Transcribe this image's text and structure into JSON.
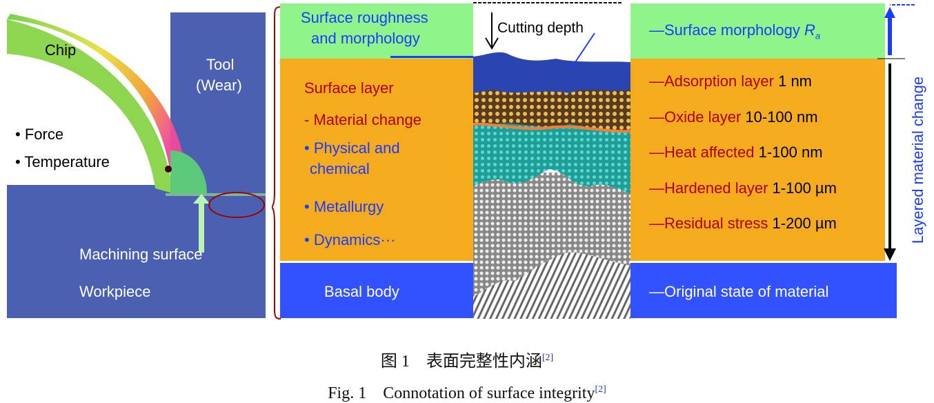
{
  "left_panel": {
    "chip": "Chip",
    "tool": "Tool",
    "tool_wear": "(Wear)",
    "bullets": [
      "• Force",
      "• Temperature"
    ],
    "machining_surface": "Machining surface",
    "workpiece": "Workpiece"
  },
  "middle_panel": {
    "surface_roughness": "Surface roughness",
    "and_morphology": "and morphology",
    "surface_layer": "Surface layer",
    "material_change": "- Material change",
    "physical": "• Physical and",
    "chemical": "chemical",
    "metallurgy": "• Metallurgy",
    "dynamics": "• Dynamics···",
    "basal_body": "Basal body",
    "cutting_depth": "Cutting depth"
  },
  "right_panel": {
    "surface_morphology": "—Surface morphology ",
    "ra_symbol": "R",
    "ra_sub": "a",
    "layers": [
      {
        "name": "—Adsorption layer",
        "value": " 1 nm"
      },
      {
        "name": "—Oxide layer",
        "value": " 10-100 nm"
      },
      {
        "name": "—Heat affected",
        "value": " 1-100 nm"
      },
      {
        "name": "—Hardened layer",
        "value": " 1-100 µm"
      },
      {
        "name": "—Residual stress",
        "value": " 1-200 µm"
      }
    ],
    "original_state": "—Original state of material",
    "layered_change": "Layered material change"
  },
  "caption": {
    "cn": "图 1　表面完整性内涵",
    "cn_ref": "[2]",
    "en": "Fig. 1　Connotation of surface integrity",
    "en_ref": "[2]"
  },
  "colors": {
    "green": "#8ff58a",
    "orange": "#f5ab1e",
    "blue": "#3352ff",
    "workpiece": "#4b60b0",
    "brace": "#a00000"
  }
}
